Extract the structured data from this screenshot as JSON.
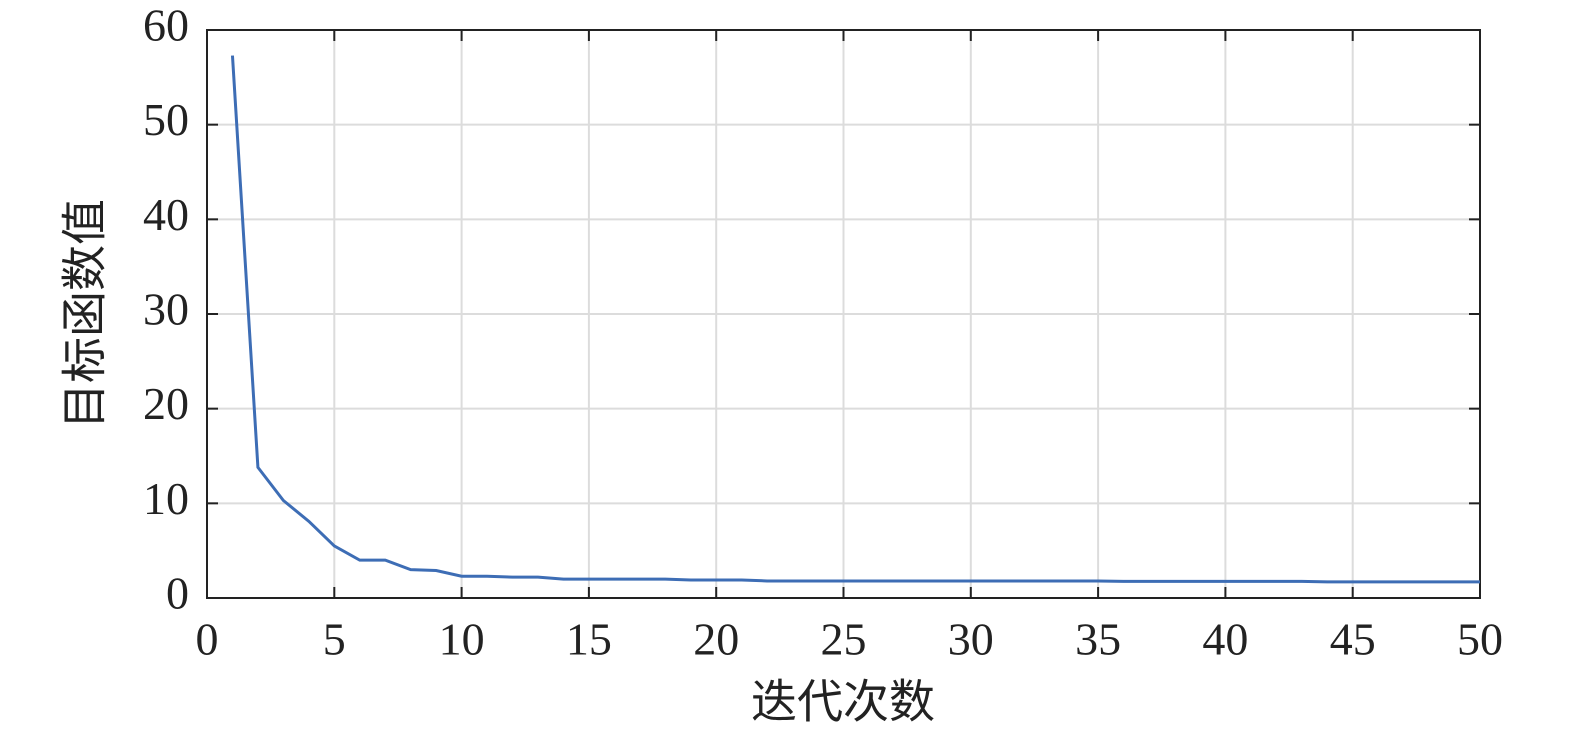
{
  "chart_data": {
    "type": "line",
    "x_label": "迭代次数",
    "y_label": "目标函数值",
    "x": [
      1,
      2,
      3,
      4,
      5,
      6,
      7,
      8,
      9,
      10,
      11,
      12,
      13,
      14,
      15,
      16,
      17,
      18,
      19,
      20,
      21,
      22,
      23,
      24,
      25,
      26,
      27,
      28,
      29,
      30,
      31,
      32,
      33,
      34,
      35,
      36,
      37,
      38,
      39,
      40,
      41,
      42,
      43,
      44,
      45,
      46,
      47,
      48,
      49,
      50
    ],
    "series": [
      {
        "color": "#3d6db5",
        "values": [
          57.3,
          13.8,
          10.3,
          8.1,
          5.5,
          4.0,
          4.0,
          3.0,
          2.9,
          2.3,
          2.3,
          2.2,
          2.2,
          2.0,
          2.0,
          2.0,
          2.0,
          2.0,
          1.9,
          1.9,
          1.9,
          1.8,
          1.8,
          1.8,
          1.8,
          1.8,
          1.8,
          1.8,
          1.8,
          1.8,
          1.8,
          1.8,
          1.8,
          1.8,
          1.8,
          1.75,
          1.75,
          1.75,
          1.75,
          1.75,
          1.75,
          1.75,
          1.75,
          1.7,
          1.7,
          1.7,
          1.7,
          1.7,
          1.7,
          1.7
        ]
      }
    ],
    "xlim": [
      0,
      50
    ],
    "xticks": [
      0,
      5,
      10,
      15,
      20,
      25,
      30,
      35,
      40,
      45,
      50
    ],
    "ylim": [
      0,
      60
    ],
    "yticks": [
      0,
      10,
      20,
      30,
      40,
      50,
      60
    ],
    "grid": true
  }
}
